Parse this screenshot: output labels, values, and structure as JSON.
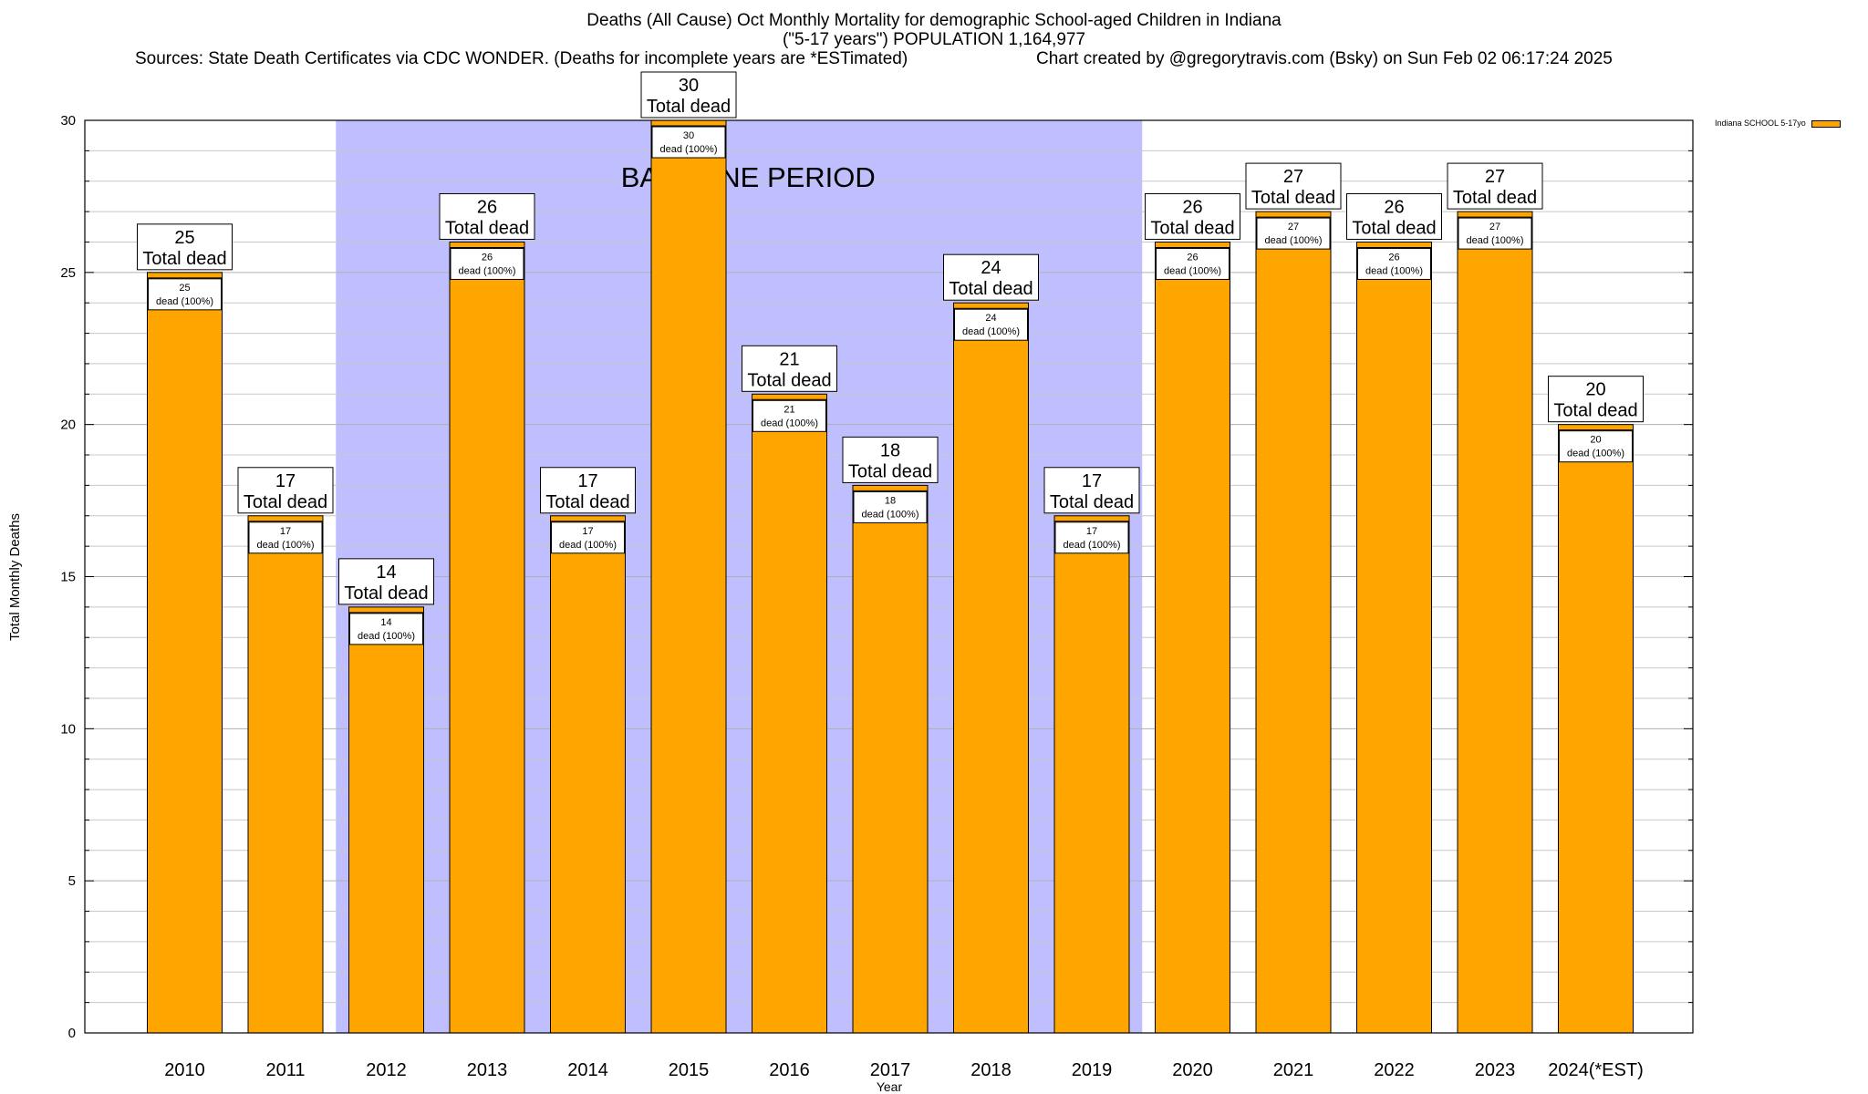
{
  "title": {
    "line1": "Deaths (All Cause) Oct Monthly Mortality for demographic School-aged Children in Indiana",
    "line2": "(\"5-17 years\") POPULATION 1,164,977",
    "sources": "Sources: State Death Certificates via CDC WONDER. (Deaths for incomplete years are *ESTimated)",
    "credit": "Chart created by @gregorytravis.com (Bsky) on Sun Feb 02 06:17:24 2025"
  },
  "colors": {
    "bar": "#ffa500",
    "baseline_shade": "#bfbfff",
    "grid": "#c8c8c8"
  },
  "chart_data": {
    "type": "bar",
    "title": "Deaths (All Cause) Oct Monthly Mortality for demographic School-aged Children in Indiana",
    "xlabel": "Year",
    "ylabel": "Total Monthly Deaths",
    "ylim": [
      0,
      30
    ],
    "yticks": [
      0,
      5,
      10,
      15,
      20,
      25,
      30
    ],
    "grid": true,
    "legend_position": "top-right",
    "categories": [
      "2010",
      "2011",
      "2012",
      "2013",
      "2014",
      "2015",
      "2016",
      "2017",
      "2018",
      "2019",
      "2020",
      "2021",
      "2022",
      "2023",
      "2024(*EST)"
    ],
    "series": [
      {
        "name": "Indiana SCHOOL 5-17yo",
        "values": [
          25,
          17,
          14,
          26,
          17,
          30,
          21,
          18,
          24,
          17,
          26,
          27,
          26,
          27,
          20
        ]
      }
    ],
    "total_label_suffix": "Total dead",
    "inner_label_suffix": "dead (100%)",
    "annotation": {
      "text": "BASELINE PERIOD",
      "from": "2012",
      "to": "2019"
    }
  }
}
